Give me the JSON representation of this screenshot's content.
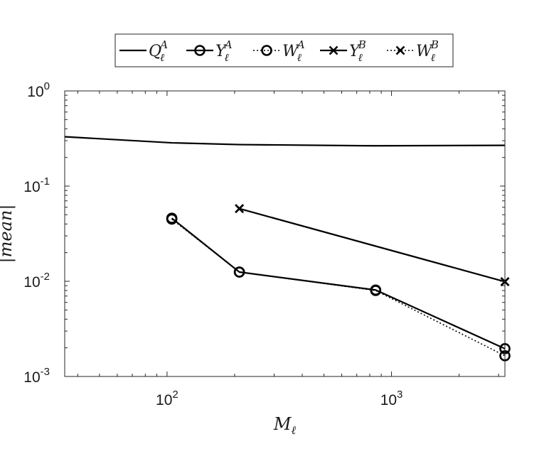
{
  "chart_data": {
    "type": "line",
    "xlabel": "M_ℓ",
    "ylabel": "|mean|",
    "xscale": "log",
    "yscale": "log",
    "xlim": [
      35,
      3200
    ],
    "ylim": [
      0.001,
      1
    ],
    "x_ticks": [
      {
        "value": 100,
        "base": "10",
        "exp": "2"
      },
      {
        "value": 1000,
        "base": "10",
        "exp": "3"
      }
    ],
    "y_ticks": [
      {
        "value": 1,
        "base": "10",
        "exp": "0"
      },
      {
        "value": 0.1,
        "base": "10",
        "exp": "-1"
      },
      {
        "value": 0.01,
        "base": "10",
        "exp": "-2"
      },
      {
        "value": 0.001,
        "base": "10",
        "exp": "-3"
      }
    ],
    "legend_position": "top-center-outside",
    "series": [
      {
        "name": "Q_ℓ^A",
        "base": "Q",
        "sub": "ℓ",
        "sup": "A",
        "line": "solid",
        "marker": "none",
        "x": [
          35,
          105,
          210,
          850,
          3200
        ],
        "y": [
          0.33,
          0.285,
          0.273,
          0.265,
          0.268
        ]
      },
      {
        "name": "Y_ℓ^A",
        "base": "Y",
        "sub": "ℓ",
        "sup": "A",
        "line": "solid",
        "marker": "circle",
        "x": [
          105,
          210,
          850,
          3200
        ],
        "y": [
          0.046,
          0.0125,
          0.0081,
          0.00196
        ]
      },
      {
        "name": "W_ℓ^A",
        "base": "W",
        "sub": "ℓ",
        "sup": "A",
        "line": "dotted",
        "marker": "circle",
        "x": [
          105,
          210,
          850,
          3200
        ],
        "y": [
          0.045,
          0.0125,
          0.008,
          0.00165
        ]
      },
      {
        "name": "Y_ℓ^B",
        "base": "Y",
        "sub": "ℓ",
        "sup": "B",
        "line": "solid",
        "marker": "x",
        "x": [
          210,
          3200
        ],
        "y": [
          0.058,
          0.0099
        ]
      },
      {
        "name": "W_ℓ^B",
        "base": "W",
        "sub": "ℓ",
        "sup": "B",
        "line": "dotted",
        "marker": "x",
        "x": [
          210,
          3200
        ],
        "y": [
          0.058,
          0.0099
        ]
      }
    ]
  }
}
